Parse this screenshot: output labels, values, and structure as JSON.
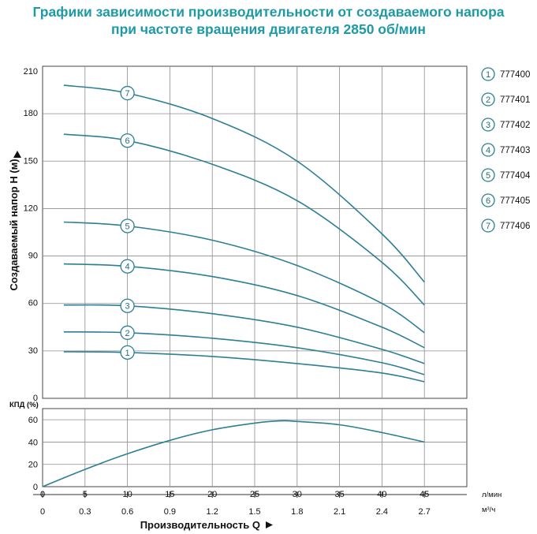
{
  "title_line1": "Графики зависимости производительности от создаваемого напора",
  "title_line2": "при частоте вращения двигателя 2850 об/мин",
  "colors": {
    "accent": "#1e9aa6",
    "curve": "#2c7f95",
    "grid": "#8c8c8c"
  },
  "chart_data": [
    {
      "type": "line",
      "ylabel": "Создаваемый напор H (м)",
      "ylim": [
        0,
        210
      ],
      "yticks": [
        0,
        30,
        60,
        90,
        120,
        150,
        180,
        210
      ],
      "xlim": [
        0,
        50
      ],
      "grid": true,
      "legend_position": "right",
      "series": [
        {
          "name": "777400",
          "marker": "1",
          "x": [
            2.5,
            10,
            20,
            30,
            40,
            45
          ],
          "y": [
            29.5,
            29,
            26.5,
            22,
            16,
            10.5
          ]
        },
        {
          "name": "777401",
          "marker": "2",
          "x": [
            2.5,
            10,
            20,
            30,
            40,
            45
          ],
          "y": [
            42,
            41.5,
            38,
            32,
            22.5,
            15
          ]
        },
        {
          "name": "777402",
          "marker": "3",
          "x": [
            2.5,
            10,
            20,
            30,
            40,
            45
          ],
          "y": [
            59,
            58.5,
            53.5,
            45,
            31,
            22
          ]
        },
        {
          "name": "777403",
          "marker": "4",
          "x": [
            2.5,
            10,
            20,
            30,
            40,
            45
          ],
          "y": [
            85,
            83.5,
            77,
            65,
            45,
            32
          ]
        },
        {
          "name": "777404",
          "marker": "5",
          "x": [
            2.5,
            10,
            20,
            30,
            40,
            45
          ],
          "y": [
            111.5,
            109,
            100,
            84,
            60,
            41.5
          ]
        },
        {
          "name": "777405",
          "marker": "6",
          "x": [
            2.5,
            10,
            20,
            30,
            40,
            45
          ],
          "y": [
            167,
            163,
            148,
            125,
            86,
            59
          ]
        },
        {
          "name": "777406",
          "marker": "7",
          "x": [
            2.5,
            10,
            20,
            30,
            40,
            45
          ],
          "y": [
            198,
            193,
            177,
            150,
            104,
            73.5
          ]
        }
      ]
    },
    {
      "type": "line",
      "ylabel": "КПД (%)",
      "ylim": [
        0,
        70
      ],
      "yticks": [
        0,
        20,
        40,
        60
      ],
      "xlim": [
        0,
        50
      ],
      "x_lmin_label": "л/мин",
      "x_m3h_label": "м³/ч",
      "xlabel": "Производительность Q",
      "xticks_lmin": [
        "0",
        "5",
        "10",
        "15",
        "20",
        "25",
        "30",
        "35",
        "40",
        "45"
      ],
      "xticks_m3h": [
        "0",
        "0.3",
        "0.6",
        "0.9",
        "1.2",
        "1.5",
        "1.8",
        "2.1",
        "2.4",
        "2.7"
      ],
      "grid": true,
      "series": [
        {
          "x": [
            0,
            5,
            10,
            15,
            20,
            25,
            28,
            30,
            35,
            40,
            45
          ],
          "y": [
            0,
            15.5,
            29.5,
            41.5,
            51,
            57,
            59,
            58.5,
            55.5,
            48.5,
            40
          ]
        }
      ]
    }
  ]
}
